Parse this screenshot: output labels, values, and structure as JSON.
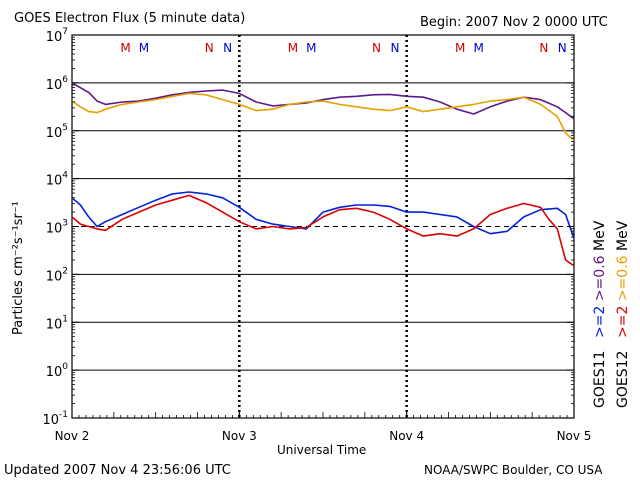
{
  "chart_data": {
    "type": "line",
    "title": "GOES Electron Flux (5 minute data)",
    "begin_label": "Begin: 2007 Nov 2 0000 UTC",
    "xlabel": "Universal Time",
    "ylabel": "Particles cm⁻²s⁻¹sr⁻¹",
    "x_unit": "day",
    "xlim": [
      2,
      5
    ],
    "x_ticks": [
      {
        "x": 2,
        "label": "Nov 2"
      },
      {
        "x": 3,
        "label": "Nov 3"
      },
      {
        "x": 4,
        "label": "Nov 4"
      },
      {
        "x": 5,
        "label": "Nov 5"
      }
    ],
    "y_scale": "log",
    "ylim_exp": [
      -1,
      7
    ],
    "y_ticks": [
      {
        "base": "10",
        "exp": "7"
      },
      {
        "base": "10",
        "exp": "6"
      },
      {
        "base": "10",
        "exp": "5"
      },
      {
        "base": "10",
        "exp": "4"
      },
      {
        "base": "10",
        "exp": "3"
      },
      {
        "base": "10",
        "exp": "2"
      },
      {
        "base": "10",
        "exp": "1"
      },
      {
        "base": "10",
        "exp": "0"
      },
      {
        "base": "10",
        "exp": "-1"
      }
    ],
    "threshold_log": 3,
    "markers": [
      {
        "x": 2.32,
        "label": "M",
        "color": "#cc0000"
      },
      {
        "x": 2.43,
        "label": "M",
        "color": "#0000cc"
      },
      {
        "x": 2.82,
        "label": "N",
        "color": "#cc0000"
      },
      {
        "x": 2.93,
        "label": "N",
        "color": "#0000cc"
      },
      {
        "x": 3.32,
        "label": "M",
        "color": "#cc0000"
      },
      {
        "x": 3.43,
        "label": "M",
        "color": "#0000cc"
      },
      {
        "x": 3.82,
        "label": "N",
        "color": "#cc0000"
      },
      {
        "x": 3.93,
        "label": "N",
        "color": "#0000cc"
      },
      {
        "x": 4.32,
        "label": "M",
        "color": "#cc0000"
      },
      {
        "x": 4.43,
        "label": "M",
        "color": "#0000cc"
      },
      {
        "x": 4.82,
        "label": "N",
        "color": "#cc0000"
      },
      {
        "x": 4.93,
        "label": "N",
        "color": "#0000cc"
      }
    ],
    "series": [
      {
        "name": ">=0.6 MeV GOES11",
        "color": "#5a1a8c",
        "x": [
          2.0,
          2.1,
          2.15,
          2.2,
          2.3,
          2.4,
          2.5,
          2.6,
          2.7,
          2.8,
          2.9,
          3.0,
          3.1,
          3.2,
          3.3,
          3.4,
          3.5,
          3.6,
          3.7,
          3.8,
          3.9,
          4.0,
          4.1,
          4.2,
          4.3,
          4.4,
          4.5,
          4.6,
          4.7,
          4.8,
          4.9,
          4.95,
          5.0
        ],
        "y_log": [
          6.0,
          5.8,
          5.62,
          5.55,
          5.6,
          5.62,
          5.68,
          5.75,
          5.8,
          5.83,
          5.85,
          5.78,
          5.6,
          5.52,
          5.55,
          5.58,
          5.65,
          5.7,
          5.72,
          5.75,
          5.76,
          5.72,
          5.7,
          5.6,
          5.45,
          5.35,
          5.5,
          5.62,
          5.7,
          5.65,
          5.5,
          5.38,
          5.25
        ]
      },
      {
        "name": ">=0.6 MeV GOES12",
        "color": "#e8a000",
        "x": [
          2.0,
          2.05,
          2.1,
          2.15,
          2.2,
          2.3,
          2.4,
          2.5,
          2.6,
          2.7,
          2.8,
          2.9,
          3.0,
          3.1,
          3.2,
          3.3,
          3.4,
          3.5,
          3.6,
          3.7,
          3.8,
          3.9,
          4.0,
          4.1,
          4.2,
          4.3,
          4.4,
          4.5,
          4.6,
          4.7,
          4.8,
          4.9,
          4.95,
          5.0
        ],
        "y_log": [
          5.62,
          5.5,
          5.4,
          5.38,
          5.45,
          5.55,
          5.6,
          5.65,
          5.72,
          5.78,
          5.75,
          5.65,
          5.55,
          5.42,
          5.45,
          5.55,
          5.6,
          5.62,
          5.55,
          5.5,
          5.45,
          5.42,
          5.5,
          5.4,
          5.45,
          5.5,
          5.55,
          5.62,
          5.65,
          5.7,
          5.55,
          5.3,
          4.95,
          4.8
        ]
      },
      {
        "name": ">=2 MeV GOES11",
        "color": "#0022dd",
        "x": [
          2.0,
          2.05,
          2.1,
          2.15,
          2.2,
          2.3,
          2.4,
          2.5,
          2.6,
          2.7,
          2.8,
          2.9,
          3.0,
          3.1,
          3.2,
          3.3,
          3.4,
          3.5,
          3.6,
          3.7,
          3.8,
          3.9,
          4.0,
          4.1,
          4.2,
          4.3,
          4.4,
          4.5,
          4.6,
          4.7,
          4.8,
          4.9,
          4.95,
          5.0
        ],
        "y_log": [
          3.6,
          3.45,
          3.2,
          3.0,
          3.1,
          3.25,
          3.4,
          3.55,
          3.68,
          3.72,
          3.68,
          3.6,
          3.4,
          3.15,
          3.05,
          3.0,
          2.95,
          3.3,
          3.4,
          3.45,
          3.45,
          3.42,
          3.3,
          3.3,
          3.25,
          3.2,
          3.0,
          2.85,
          2.9,
          3.2,
          3.35,
          3.38,
          3.25,
          2.75
        ]
      },
      {
        "name": ">=2 MeV GOES12",
        "color": "#dd0000",
        "x": [
          2.0,
          2.05,
          2.1,
          2.15,
          2.2,
          2.3,
          2.4,
          2.5,
          2.6,
          2.7,
          2.8,
          2.9,
          3.0,
          3.1,
          3.2,
          3.3,
          3.4,
          3.5,
          3.6,
          3.7,
          3.8,
          3.9,
          4.0,
          4.1,
          4.2,
          4.3,
          4.4,
          4.5,
          4.6,
          4.7,
          4.8,
          4.85,
          4.9,
          4.95,
          5.0
        ],
        "y_log": [
          3.2,
          3.05,
          3.0,
          2.95,
          2.92,
          3.15,
          3.3,
          3.45,
          3.55,
          3.65,
          3.5,
          3.3,
          3.1,
          2.95,
          3.0,
          2.95,
          2.98,
          3.2,
          3.35,
          3.38,
          3.3,
          3.15,
          2.95,
          2.8,
          2.85,
          2.8,
          2.95,
          3.25,
          3.38,
          3.48,
          3.4,
          3.15,
          2.95,
          2.3,
          2.18
        ]
      }
    ],
    "legend": {
      "energy_labels": [
        {
          "prefix": ">=2",
          "prefix_color": "#0022dd",
          "value": ">=0.6",
          "value_color": "#5a1a8c",
          "unit": "MeV"
        },
        {
          "prefix": ">=2",
          "prefix_color": "#dd0000",
          "value": ">=0.6",
          "value_color": "#e8a000",
          "unit": "MeV"
        }
      ],
      "satellites": [
        "GOES11",
        "GOES12"
      ]
    },
    "footer": {
      "updated": "Updated 2007 Nov  4 23:56:06 UTC",
      "source": "NOAA/SWPC Boulder, CO USA"
    }
  }
}
